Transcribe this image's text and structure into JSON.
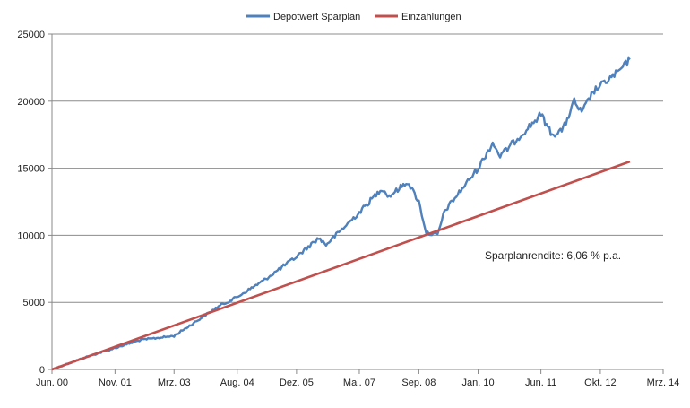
{
  "chart_data": {
    "type": "line",
    "x_unit": "date",
    "xlim": [
      "2000-06-01",
      "2014-03-01"
    ],
    "ylim": [
      0,
      25000
    ],
    "y_ticks": [
      0,
      5000,
      10000,
      15000,
      20000,
      25000
    ],
    "x_ticks": [
      {
        "date": "2000-06-01",
        "label": "Jun. 00"
      },
      {
        "date": "2001-11-01",
        "label": "Nov. 01"
      },
      {
        "date": "2003-03-01",
        "label": "Mrz. 03"
      },
      {
        "date": "2004-08-01",
        "label": "Aug. 04"
      },
      {
        "date": "2005-12-01",
        "label": "Dez. 05"
      },
      {
        "date": "2007-05-01",
        "label": "Mai. 07"
      },
      {
        "date": "2008-09-01",
        "label": "Sep. 08"
      },
      {
        "date": "2010-01-01",
        "label": "Jan. 10"
      },
      {
        "date": "2011-06-01",
        "label": "Jun. 11"
      },
      {
        "date": "2012-10-01",
        "label": "Okt. 12"
      },
      {
        "date": "2014-03-01",
        "label": "Mrz. 14"
      }
    ],
    "grid": true,
    "legend_position": "top-center",
    "annotation": "Sparplanrendite: 6,06 % p.a.",
    "series": [
      {
        "name": "Depotwert Sparplan",
        "color": "#4F81BD",
        "points": [
          {
            "x": "2000-06-01",
            "y": 0
          },
          {
            "x": "2001-03-01",
            "y": 900
          },
          {
            "x": "2001-11-01",
            "y": 1600
          },
          {
            "x": "2002-06-01",
            "y": 2200
          },
          {
            "x": "2003-03-01",
            "y": 2500
          },
          {
            "x": "2003-09-01",
            "y": 3600
          },
          {
            "x": "2004-03-01",
            "y": 4700
          },
          {
            "x": "2004-08-01",
            "y": 5400
          },
          {
            "x": "2005-03-01",
            "y": 6600
          },
          {
            "x": "2005-12-01",
            "y": 8400
          },
          {
            "x": "2006-06-01",
            "y": 9800
          },
          {
            "x": "2006-08-01",
            "y": 9300
          },
          {
            "x": "2007-05-01",
            "y": 11700
          },
          {
            "x": "2007-11-01",
            "y": 13500
          },
          {
            "x": "2008-01-01",
            "y": 12900
          },
          {
            "x": "2008-06-01",
            "y": 14000
          },
          {
            "x": "2008-09-01",
            "y": 12500
          },
          {
            "x": "2008-11-01",
            "y": 10200
          },
          {
            "x": "2009-02-01",
            "y": 10000
          },
          {
            "x": "2009-04-01",
            "y": 11800
          },
          {
            "x": "2010-01-01",
            "y": 15000
          },
          {
            "x": "2010-05-01",
            "y": 16900
          },
          {
            "x": "2010-07-01",
            "y": 15900
          },
          {
            "x": "2011-06-01",
            "y": 19000
          },
          {
            "x": "2011-09-01",
            "y": 17500
          },
          {
            "x": "2011-12-01",
            "y": 17900
          },
          {
            "x": "2012-03-01",
            "y": 20000
          },
          {
            "x": "2012-05-01",
            "y": 19100
          },
          {
            "x": "2012-08-01",
            "y": 20700
          },
          {
            "x": "2013-03-01",
            "y": 22200
          },
          {
            "x": "2013-06-01",
            "y": 23100
          }
        ]
      },
      {
        "name": "Einzahlungen",
        "color": "#C0504D",
        "points": [
          {
            "x": "2000-06-01",
            "y": 0
          },
          {
            "x": "2013-06-01",
            "y": 15500
          }
        ]
      }
    ]
  }
}
